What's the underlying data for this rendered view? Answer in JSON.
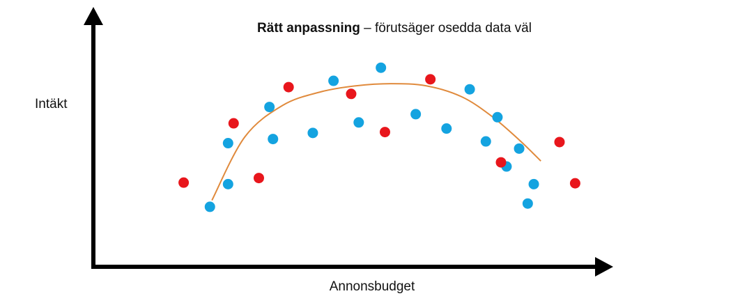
{
  "diagram": {
    "title_bold": "Rätt anpassning",
    "title_rest": " – förutsäger osedda data väl",
    "ylabel": "Intäkt",
    "xlabel": "Annonsbudget"
  },
  "colors": {
    "axis": "#000000",
    "training_point": "#14a3e0",
    "test_point": "#e8161c",
    "fit_curve": "#e08a3c"
  },
  "chart_data": {
    "type": "scatter",
    "xlim": [
      0,
      100
    ],
    "ylim": [
      0,
      100
    ],
    "series": [
      {
        "color": "#14a3e0",
        "points": [
          [
            23.1,
            27.5
          ],
          [
            26.7,
            37.9
          ],
          [
            26.7,
            56.7
          ],
          [
            34.9,
            73.3
          ],
          [
            35.6,
            58.6
          ],
          [
            43.5,
            61.4
          ],
          [
            47.6,
            85.3
          ],
          [
            52.6,
            66.2
          ],
          [
            57.0,
            91.3
          ],
          [
            63.9,
            70.0
          ],
          [
            70.0,
            63.4
          ],
          [
            74.6,
            81.4
          ],
          [
            77.8,
            57.5
          ],
          [
            80.1,
            68.6
          ],
          [
            81.9,
            46.0
          ],
          [
            84.4,
            54.2
          ],
          [
            86.1,
            29.0
          ],
          [
            87.3,
            37.9
          ]
        ]
      },
      {
        "color": "#e8161c",
        "points": [
          [
            17.9,
            38.6
          ],
          [
            27.8,
            65.8
          ],
          [
            32.8,
            40.7
          ],
          [
            38.7,
            82.4
          ],
          [
            51.1,
            79.3
          ],
          [
            57.8,
            61.8
          ],
          [
            66.8,
            86.0
          ],
          [
            80.8,
            47.9
          ],
          [
            92.4,
            57.2
          ],
          [
            95.5,
            38.3
          ]
        ]
      }
    ],
    "curve": [
      [
        23.5,
        30.5
      ],
      [
        30.0,
        59.5
      ],
      [
        37.5,
        74.0
      ],
      [
        45.0,
        80.2
      ],
      [
        52.0,
        83.0
      ],
      [
        59.0,
        84.0
      ],
      [
        66.0,
        83.0
      ],
      [
        73.0,
        78.0
      ],
      [
        79.0,
        69.0
      ],
      [
        84.5,
        58.0
      ],
      [
        88.7,
        48.5
      ]
    ]
  }
}
